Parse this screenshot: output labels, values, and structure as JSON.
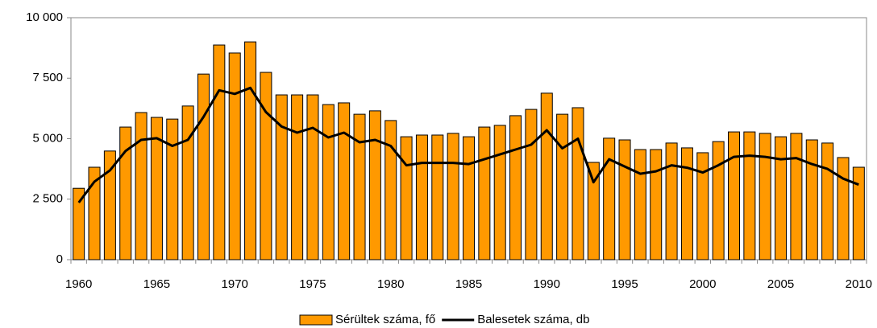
{
  "chart_data": {
    "type": "bar_line",
    "categories": [
      "1960",
      null,
      null,
      null,
      null,
      "1965",
      null,
      null,
      null,
      null,
      "1970",
      null,
      null,
      null,
      null,
      "1975",
      null,
      null,
      null,
      null,
      "1980",
      null,
      null,
      null,
      null,
      "1985",
      null,
      null,
      null,
      null,
      "1990",
      null,
      null,
      null,
      null,
      "1995",
      null,
      null,
      null,
      null,
      "2000",
      null,
      null,
      null,
      null,
      "2005",
      null,
      null,
      null,
      null,
      "2010"
    ],
    "series": [
      {
        "name": "Sérültek száma, fő",
        "type": "bar",
        "color": "#ff9900",
        "values": [
          2950,
          3820,
          4490,
          5480,
          6080,
          5880,
          5810,
          6350,
          7670,
          8870,
          8540,
          9000,
          7740,
          6810,
          6810,
          6810,
          6410,
          6480,
          6010,
          6150,
          5750,
          5080,
          5150,
          5150,
          5220,
          5080,
          5480,
          5550,
          5950,
          6210,
          6880,
          6010,
          6280,
          4020,
          5020,
          4950,
          4550,
          4550,
          4820,
          4620,
          4420,
          4880,
          5280,
          5280,
          5220,
          5080,
          5220,
          4950,
          4820,
          4220,
          3820
        ]
      },
      {
        "name": "Balesetek száma, db",
        "type": "line",
        "color": "#000000",
        "values": [
          2360,
          3220,
          3690,
          4490,
          4950,
          5020,
          4700,
          4950,
          5900,
          7000,
          6850,
          7100,
          6100,
          5500,
          5250,
          5450,
          5050,
          5250,
          4850,
          4950,
          4700,
          3900,
          4000,
          4000,
          4000,
          3950,
          4150,
          4350,
          4550,
          4750,
          5350,
          4600,
          5000,
          3200,
          4150,
          3850,
          3550,
          3650,
          3900,
          3800,
          3600,
          3900,
          4250,
          4300,
          4250,
          4150,
          4200,
          3950,
          3750,
          3350,
          3100
        ]
      }
    ],
    "ylim": [
      0,
      10000
    ],
    "yticks": [
      0,
      {
        "value": 2500,
        "label": "2 500"
      },
      {
        "value": 5000,
        "label": "5 000"
      },
      {
        "value": 7500,
        "label": "7 500"
      },
      {
        "value": 10000,
        "label": "10 000"
      }
    ],
    "grid": false,
    "legend": "bottom"
  }
}
